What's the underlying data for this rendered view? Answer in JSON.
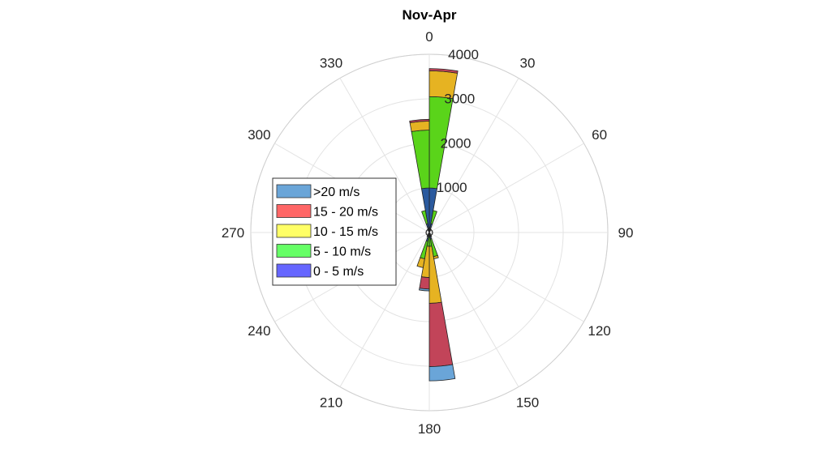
{
  "chart_data": {
    "type": "polar-stacked-bar",
    "title": "Nov-Apr",
    "theta_ticks": [
      0,
      30,
      60,
      90,
      120,
      150,
      180,
      210,
      240,
      270,
      300,
      330
    ],
    "theta_tick_labels": [
      "0",
      "30",
      "60",
      "90",
      "120",
      "150",
      "180",
      "210",
      "240",
      "270",
      "300",
      "330"
    ],
    "r_ticks": [
      1000,
      2000,
      3000,
      4000
    ],
    "r_tick_labels": [
      "1000",
      "2000",
      "3000",
      "4000"
    ],
    "r_max": 4000,
    "r_tick_label_angle_deg": 5,
    "sector_width_deg": 10,
    "grid": true,
    "legend_position": "left",
    "legend": [
      {
        "label": ">20 m/s",
        "color": "#6aa5d8"
      },
      {
        "label": "15 - 20 m/s",
        "color": "#ff6666"
      },
      {
        "label": "10 - 15 m/s",
        "color": "#ffff66"
      },
      {
        "label": "5 - 10 m/s",
        "color": "#66ff66"
      },
      {
        "label": "0 - 5 m/s",
        "color": "#6666ff"
      }
    ],
    "bar_fill_colors": [
      "#2b5a9e",
      "#5ad41a",
      "#e6b322",
      "#c24459",
      "#6aa5d8"
    ],
    "bar_stack_order_inner_to_outer": [
      "0 - 5 m/s",
      "5 - 10 m/s",
      "10 - 15 m/s",
      "15 - 20 m/s",
      ">20 m/s"
    ],
    "sectors": [
      {
        "direction": 5,
        "values": [
          1000,
          2050,
          580,
          50,
          0
        ]
      },
      {
        "direction": 355,
        "values": [
          1000,
          1300,
          200,
          40,
          0
        ]
      },
      {
        "direction": 15,
        "values": [
          200,
          300,
          0,
          0,
          0
        ]
      },
      {
        "direction": 345,
        "values": [
          200,
          300,
          0,
          0,
          0
        ]
      },
      {
        "direction": 25,
        "values": [
          80,
          0,
          0,
          0,
          0
        ]
      },
      {
        "direction": 335,
        "values": [
          80,
          0,
          0,
          0,
          0
        ]
      },
      {
        "direction": 175,
        "values": [
          80,
          230,
          1280,
          1420,
          320
        ]
      },
      {
        "direction": 185,
        "values": [
          80,
          230,
          700,
          260,
          40
        ]
      },
      {
        "direction": 165,
        "values": [
          150,
          400,
          50,
          0,
          0
        ]
      },
      {
        "direction": 195,
        "values": [
          200,
          400,
          200,
          0,
          0
        ]
      },
      {
        "direction": 155,
        "values": [
          100,
          0,
          0,
          0,
          0
        ]
      },
      {
        "direction": 205,
        "values": [
          100,
          0,
          0,
          0,
          0
        ]
      },
      {
        "direction": 145,
        "values": [
          40,
          0,
          0,
          0,
          0
        ]
      },
      {
        "direction": 215,
        "values": [
          40,
          0,
          0,
          0,
          0
        ]
      }
    ]
  }
}
